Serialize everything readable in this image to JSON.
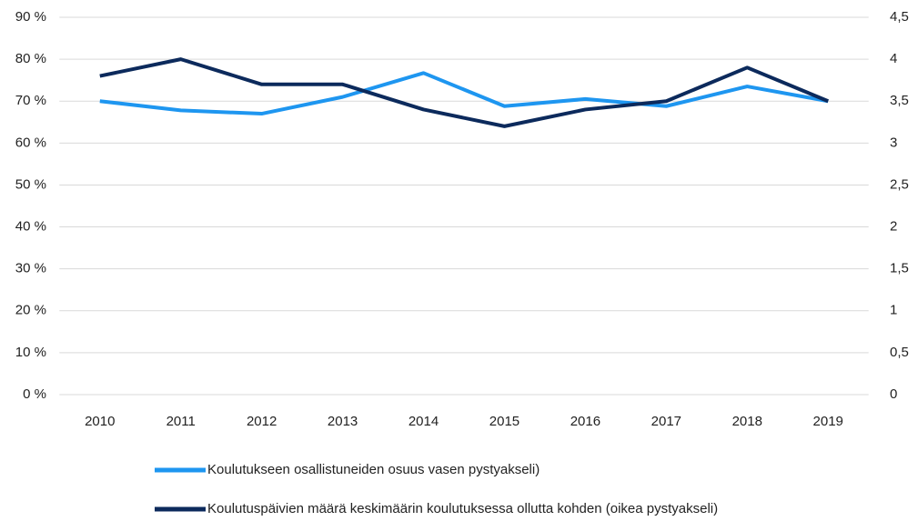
{
  "chart_data": {
    "type": "line",
    "categories": [
      "2010",
      "2011",
      "2012",
      "2013",
      "2014",
      "2015",
      "2016",
      "2017",
      "2018",
      "2019"
    ],
    "series": [
      {
        "name": "Koulutukseen osallistuneiden osuus vasen pystyakseli)",
        "color": "#1e96f0",
        "axis": "y",
        "values": [
          70,
          67.8,
          67,
          71,
          76.7,
          68.8,
          70.5,
          68.8,
          73.5,
          70
        ]
      },
      {
        "name": "Koulutuspäivien määrä keskimäärin koulutuksessa ollutta kohden (oikea pystyakseli)",
        "color": "#0c2a5c",
        "axis": "y2",
        "values": [
          3.8,
          4.0,
          3.7,
          3.7,
          3.4,
          3.2,
          3.4,
          3.5,
          3.9,
          3.5
        ]
      }
    ],
    "ylim": [
      0,
      90
    ],
    "yticks": [
      {
        "value": 0,
        "label": "0 %"
      },
      {
        "value": 10,
        "label": "10 %"
      },
      {
        "value": 20,
        "label": "20 %"
      },
      {
        "value": 30,
        "label": "30 %"
      },
      {
        "value": 40,
        "label": "40 %"
      },
      {
        "value": 50,
        "label": "50 %"
      },
      {
        "value": 60,
        "label": "60 %"
      },
      {
        "value": 70,
        "label": "70 %"
      },
      {
        "value": 80,
        "label": "80 %"
      },
      {
        "value": 90,
        "label": "90 %"
      }
    ],
    "y2lim": [
      0,
      4.5
    ],
    "y2ticks": [
      0,
      {
        "value": 0.5,
        "label": "0,5"
      },
      1,
      {
        "value": 1.5,
        "label": "1,5"
      },
      2,
      {
        "value": 2.5,
        "label": "2,5"
      },
      3,
      {
        "value": 3.5,
        "label": "3,5"
      },
      4,
      {
        "value": 4.5,
        "label": "4,5"
      }
    ],
    "grid": true,
    "legend": "bottom"
  }
}
